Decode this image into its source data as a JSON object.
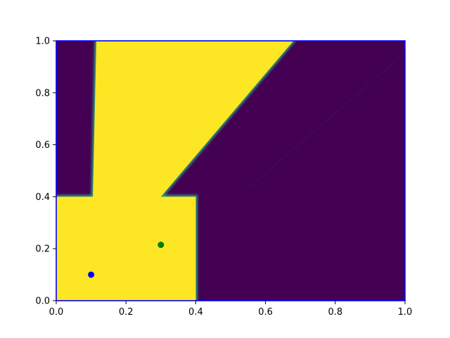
{
  "chart_data": {
    "type": "heatmap",
    "title": "",
    "xlabel": "",
    "ylabel": "",
    "xlim": [
      0,
      1
    ],
    "ylim": [
      0,
      1
    ],
    "grid": false,
    "colormap": "viridis",
    "colors": {
      "low": "#440154",
      "high": "#fde725",
      "boundary": "#0000ff",
      "point_blue": "#0000ff",
      "point_green": "#008000"
    },
    "x_ticks": [
      "0.0",
      "0.2",
      "0.4",
      "0.6",
      "0.8",
      "1.0"
    ],
    "y_ticks": [
      "0.0",
      "0.2",
      "0.4",
      "0.6",
      "0.8",
      "1.0"
    ],
    "x_tick_values": [
      0,
      0.2,
      0.4,
      0.6,
      0.8,
      1.0
    ],
    "y_tick_values": [
      0,
      0.2,
      0.4,
      0.6,
      0.8,
      1.0
    ],
    "high_region_polygon": [
      [
        0.0,
        0.0
      ],
      [
        0.4,
        0.0
      ],
      [
        0.4,
        0.4
      ],
      [
        0.3,
        0.4
      ],
      [
        0.68,
        1.0
      ],
      [
        0.115,
        1.0
      ],
      [
        0.105,
        0.4
      ],
      [
        0.0,
        0.4
      ]
    ],
    "points": [
      {
        "x": 0.1,
        "y": 0.1,
        "color": "#0000ff"
      },
      {
        "x": 0.3,
        "y": 0.215,
        "color": "#008000"
      }
    ]
  }
}
